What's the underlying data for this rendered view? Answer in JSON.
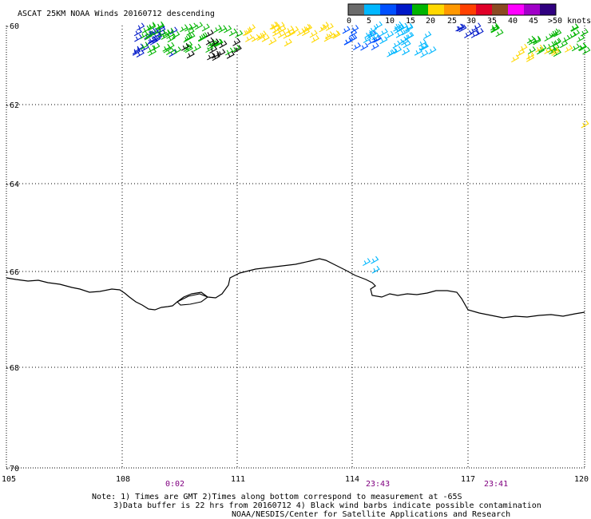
{
  "title": "ASCAT 25KM NOAA Winds 20160712 descending",
  "colorbar": {
    "colors": [
      "#6b6b6b",
      "#00b7ff",
      "#0050ff",
      "#0018c8",
      "#00b400",
      "#ffd800",
      "#ff9800",
      "#ff4000",
      "#e00028",
      "#8b4a22",
      "#ff00ff",
      "#a000c8",
      "#300080"
    ],
    "labels": [
      "0",
      "5",
      "10",
      "15",
      "20",
      "25",
      "30",
      "35",
      "40",
      "45",
      ">50 knots"
    ]
  },
  "lat_labels": [
    "-60",
    "-62",
    "-64",
    "-66",
    "-68",
    "-70"
  ],
  "lon_labels": [
    "105",
    "108",
    "111",
    "114",
    "117",
    "120"
  ],
  "time_labels": [
    "0:02",
    "23:43",
    "23:41"
  ],
  "notes": [
    "Note: 1) Times are GMT 2)Times along bottom correspond to measurement at -65S",
    "3)Data buffer is 22 hrs from 20160712 4) Black wind barbs indicate possible contamination",
    "NOAA/NESDIS/Center for Satellite Applications and Research"
  ]
}
